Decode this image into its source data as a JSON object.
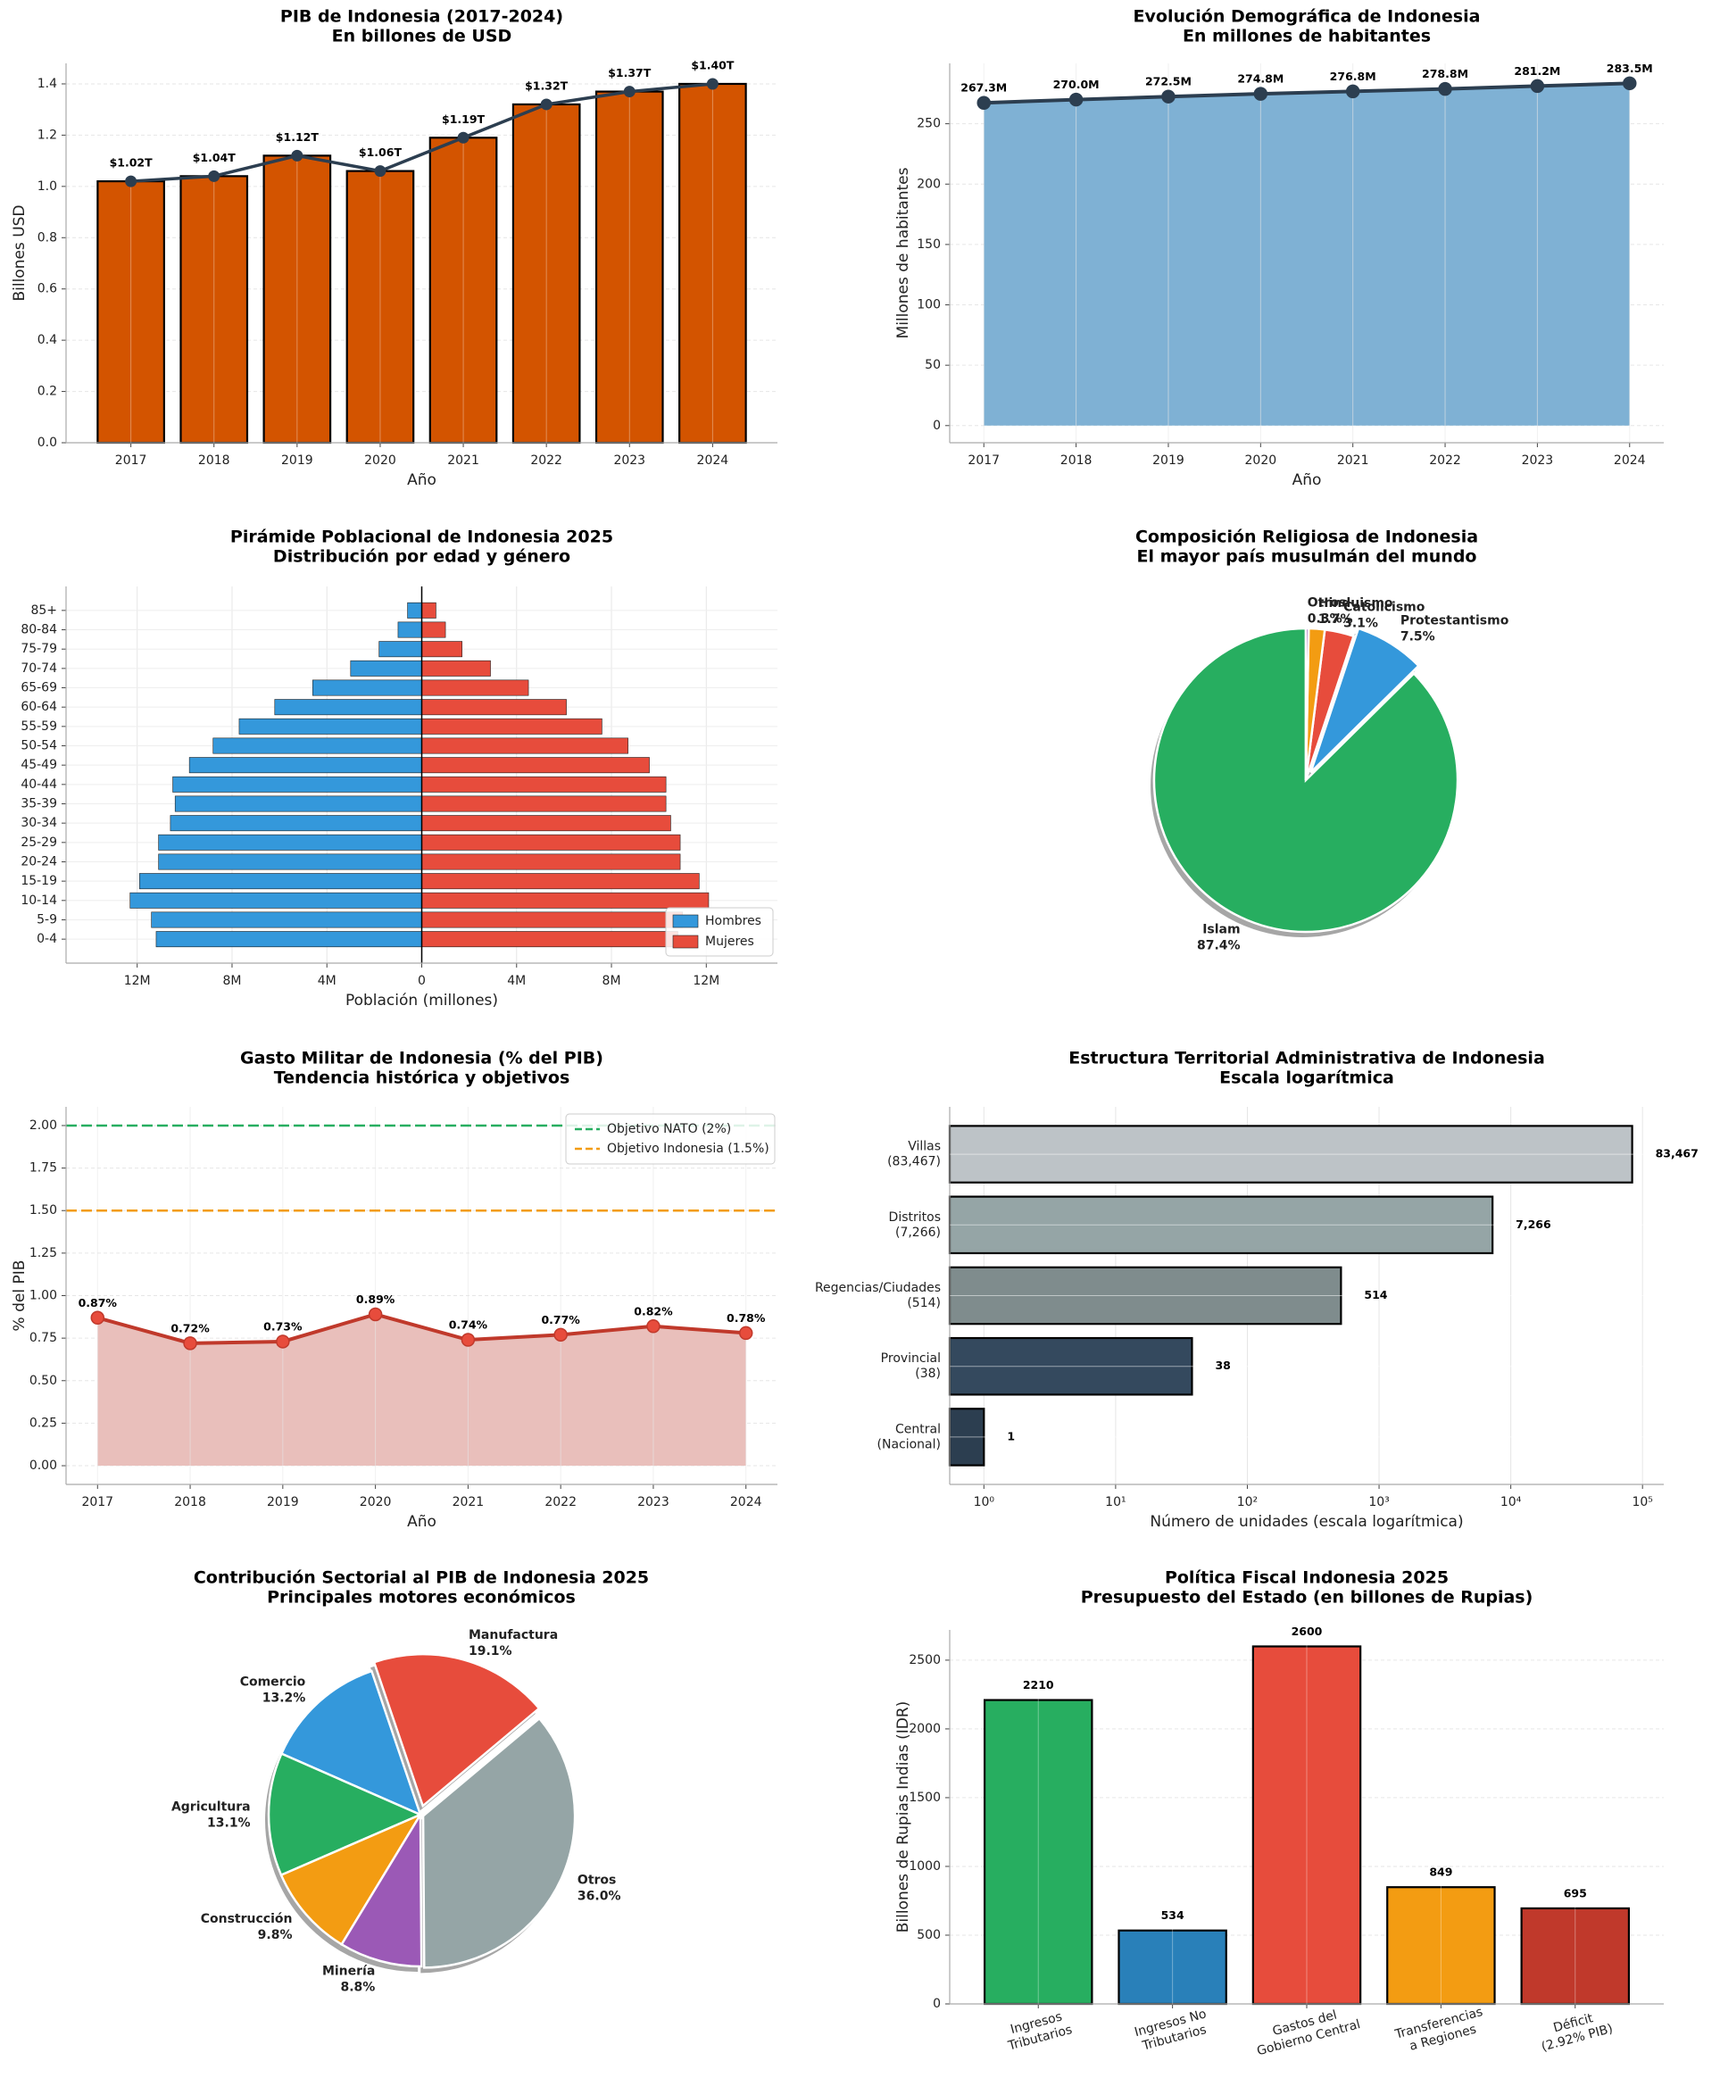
{
  "chart_data": [
    {
      "type": "bar",
      "title": "PIB de Indonesia (2017-2024)",
      "subtitle": "En billones de USD",
      "categories": [
        "2017",
        "2018",
        "2019",
        "2020",
        "2021",
        "2022",
        "2023",
        "2024"
      ],
      "values": [
        1.02,
        1.04,
        1.12,
        1.06,
        1.19,
        1.32,
        1.37,
        1.4
      ],
      "value_labels": [
        "$1.02T",
        "$1.04T",
        "$1.12T",
        "$1.06T",
        "$1.19T",
        "$1.32T",
        "$1.37T",
        "$1.40T"
      ],
      "color": "#d35400",
      "line_color": "#2c3e50",
      "xlabel": "Año",
      "ylabel": "Billones USD",
      "ylim": [
        0,
        1.48
      ],
      "yticks": [
        {
          "value": 0,
          "label": "0.0"
        },
        0.2,
        0.4,
        0.6,
        0.8,
        {
          "value": 1,
          "label": "1.0"
        },
        1.2,
        1.4
      ],
      "grid": true
    },
    {
      "type": "area",
      "title": "Evolución Demográfica de Indonesia",
      "subtitle": "En millones de habitantes",
      "categories": [
        "2017",
        "2018",
        "2019",
        "2020",
        "2021",
        "2022",
        "2023",
        "2024"
      ],
      "values": [
        267.3,
        270.0,
        272.5,
        274.8,
        276.8,
        278.8,
        281.2,
        283.5
      ],
      "value_labels": [
        "267.3M",
        "270.0M",
        "272.5M",
        "274.8M",
        "276.8M",
        "278.8M",
        "281.2M",
        "283.5M"
      ],
      "color": "#2c3e50",
      "fill_color": "#7fb1d4",
      "xlabel": "Año",
      "ylabel": "Millones de habitantes",
      "ylim": [
        -14.2,
        300
      ],
      "yticks": [
        0,
        50,
        100,
        150,
        200,
        250
      ],
      "grid": true
    },
    {
      "type": "pyramid",
      "title": "Pirámide Poblacional de Indonesia 2025",
      "subtitle": "Distribución por edad y género",
      "categories": [
        "0-4",
        "5-9",
        "10-14",
        "15-19",
        "20-24",
        "25-29",
        "30-34",
        "35-39",
        "40-44",
        "45-49",
        "50-54",
        "55-59",
        "60-64",
        "65-69",
        "70-74",
        "75-79",
        "80-84",
        "85+"
      ],
      "series": [
        {
          "name": "Hombres",
          "color": "#3498db",
          "values": [
            -11.2,
            -11.4,
            -12.3,
            -11.9,
            -11.1,
            -11.1,
            -10.6,
            -10.4,
            -10.5,
            -9.8,
            -8.8,
            -7.7,
            -6.2,
            -4.6,
            -3.0,
            -1.8,
            -1.0,
            -0.6
          ]
        },
        {
          "name": "Mujeres",
          "color": "#e74c3c",
          "values": [
            10.8,
            11.0,
            12.1,
            11.7,
            10.9,
            10.9,
            10.5,
            10.3,
            10.3,
            9.6,
            8.7,
            7.6,
            6.1,
            4.5,
            2.9,
            1.7,
            1.0,
            0.6
          ]
        }
      ],
      "xlabel": "Población (millones)",
      "xlim": [
        -15,
        15
      ],
      "xticks": [
        {
          "value": -12,
          "label": "12M"
        },
        {
          "value": -8,
          "label": "8M"
        },
        {
          "value": -4,
          "label": "4M"
        },
        0,
        {
          "value": 4,
          "label": "4M"
        },
        {
          "value": 8,
          "label": "8M"
        },
        {
          "value": 12,
          "label": "12M"
        }
      ],
      "legend": "lower right",
      "grid": true
    },
    {
      "type": "pie",
      "title": "Composición Religiosa de Indonesia",
      "subtitle": "El mayor país musulmán del mundo",
      "categories": [
        "Islam",
        "Protestantismo",
        "Catolicismo",
        "Hinduismo",
        "Otros"
      ],
      "values": [
        87.4,
        7.5,
        3.1,
        1.7,
        0.3
      ],
      "value_labels": [
        "87.4%",
        "7.5%",
        "3.1%",
        "1.7%",
        "0.3%"
      ],
      "colors": [
        "#27ae60",
        "#3498db",
        "#e74c3c",
        "#f39c12",
        "#9b59b6"
      ]
    },
    {
      "type": "area",
      "title": "Gasto Militar de Indonesia (% del PIB)",
      "subtitle": "Tendencia histórica y objetivos",
      "categories": [
        "2017",
        "2018",
        "2019",
        "2020",
        "2021",
        "2022",
        "2023",
        "2024"
      ],
      "values": [
        0.87,
        0.72,
        0.73,
        0.89,
        0.74,
        0.77,
        0.82,
        0.78
      ],
      "value_labels": [
        "0.87%",
        "0.72%",
        "0.73%",
        "0.89%",
        "0.74%",
        "0.77%",
        "0.82%",
        "0.78%"
      ],
      "color": "#c0392b",
      "marker_color": "#e74c3c",
      "fill_color": "#e9bfbb",
      "xlabel": "Año",
      "ylabel": "% del PIB",
      "ylim": [
        -0.11,
        2.11
      ],
      "yticks": [
        {
          "value": 0,
          "label": "0.00"
        },
        0.25,
        {
          "value": 0.5,
          "label": "0.50"
        },
        0.75,
        {
          "value": 1,
          "label": "1.00"
        },
        1.25,
        {
          "value": 1.5,
          "label": "1.50"
        },
        1.75,
        {
          "value": 2,
          "label": "2.00"
        }
      ],
      "reference_lines": [
        {
          "value": 2.0,
          "label": "Objetivo NATO (2%)",
          "color": "#27ae60"
        },
        {
          "value": 1.5,
          "label": "Objetivo Indonesia (1.5%)",
          "color": "#f39c12"
        }
      ],
      "legend": "upper right",
      "grid": true
    },
    {
      "type": "barh",
      "title": "Estructura Territorial Administrativa de Indonesia",
      "subtitle": "Escala logarítmica",
      "categories": [
        "Central\n(Nacional)",
        "Provincial\n(38)",
        "Regencias/Ciudades\n(514)",
        "Distritos\n(7,266)",
        "Villas\n(83,467)"
      ],
      "values": [
        1,
        38,
        514,
        7266,
        83467
      ],
      "value_labels": [
        "1",
        "38",
        "514",
        "7,266",
        "83,467"
      ],
      "colors": [
        "#2c3e50",
        "#34495e",
        "#7f8c8d",
        "#95a5a6",
        "#bdc3c7"
      ],
      "xlabel": "Número de unidades (escala logarítmica)",
      "log_x": true,
      "xlim": [
        0.55,
        145000
      ],
      "xticks": [
        {
          "value": 1,
          "label": "10⁰"
        },
        {
          "value": 10,
          "label": "10¹"
        },
        {
          "value": 100,
          "label": "10²"
        },
        {
          "value": 1000,
          "label": "10³"
        },
        {
          "value": 10000,
          "label": "10⁴"
        },
        {
          "value": 100000,
          "label": "10⁵"
        }
      ],
      "grid": true
    },
    {
      "type": "pie",
      "title": "Contribución Sectorial al PIB de Indonesia 2025",
      "subtitle": "Principales motores económicos",
      "categories": [
        "Manufactura",
        "Comercio",
        "Agricultura",
        "Construcción",
        "Minería",
        "Otros"
      ],
      "values": [
        19.1,
        13.2,
        13.1,
        9.8,
        8.8,
        36.0
      ],
      "value_labels": [
        "19.1%",
        "13.2%",
        "13.1%",
        "9.8%",
        "8.8%",
        "36.0%"
      ],
      "colors": [
        "#e74c3c",
        "#3498db",
        "#27ae60",
        "#f39c12",
        "#9b59b6",
        "#95a5a6"
      ]
    },
    {
      "type": "bar",
      "title": "Política Fiscal Indonesia 2025",
      "subtitle": "Presupuesto del Estado (en billones de Rupias)",
      "categories": [
        "Ingresos\nTributarios",
        "Ingresos No\nTributarios",
        "Gastos del\nGobierno Central",
        "Transferencias\na Regiones",
        "Déficit\n(2.92% PIB)"
      ],
      "values": [
        2210,
        534,
        2600,
        849,
        695
      ],
      "colors": [
        "#27ae60",
        "#2980b9",
        "#e74c3c",
        "#f39c12",
        "#c0392b"
      ],
      "ylabel": "Billones de Rupias Indias (IDR)",
      "ylim": [
        0,
        2720
      ],
      "yticks": [
        0,
        500,
        1000,
        1500,
        2000,
        2500
      ],
      "grid": true
    }
  ]
}
